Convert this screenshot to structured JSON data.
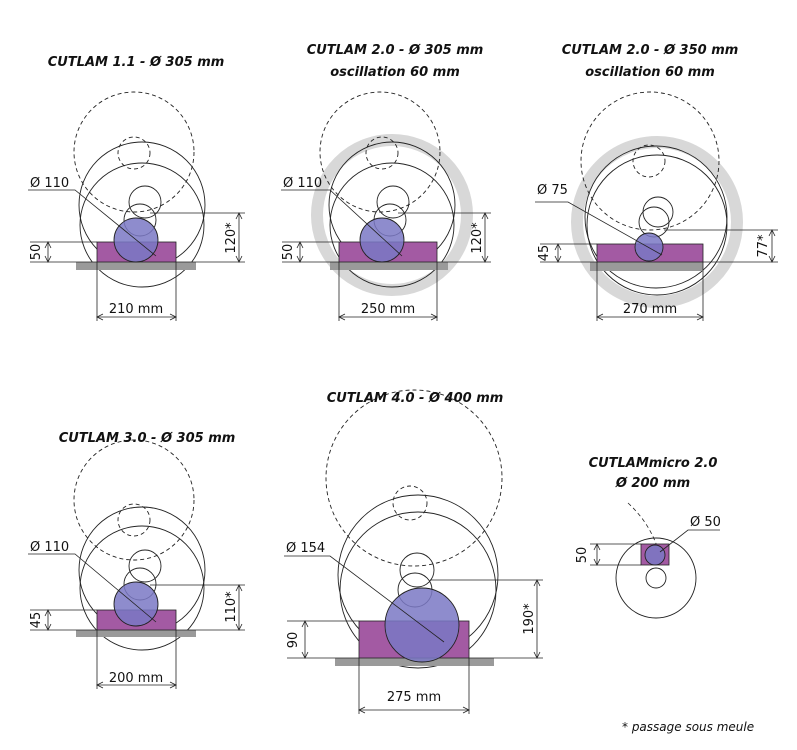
{
  "colors": {
    "workpiece": "#a35aa3",
    "wheel_disc": "#7a78c4",
    "base": "#9a9a9a",
    "halo": "#d8d8d8",
    "line": "#222222"
  },
  "panels": [
    {
      "title": [
        "CUTLAM 1.1 - Ø 305 mm"
      ],
      "diameter": "Ø 110",
      "height": "50",
      "clearance": "120*",
      "width": "210 mm"
    },
    {
      "title": [
        "CUTLAM 2.0 - Ø 305 mm",
        "oscillation 60 mm"
      ],
      "diameter": "Ø 110",
      "height": "50",
      "clearance": "120*",
      "width": "250 mm"
    },
    {
      "title": [
        "CUTLAM 2.0 - Ø 350 mm",
        "oscillation 60 mm"
      ],
      "diameter": "Ø 75",
      "height": "45",
      "clearance": "77*",
      "width": "270 mm"
    },
    {
      "title": [
        "CUTLAM 3.0 - Ø 305 mm"
      ],
      "diameter": "Ø 110",
      "height": "45",
      "clearance": "110*",
      "width": "200 mm"
    },
    {
      "title": [
        "CUTLAM 4.0 - Ø 400 mm"
      ],
      "diameter": "Ø 154",
      "height": "90",
      "clearance": "190*",
      "width": "275 mm"
    },
    {
      "title": [
        "CUTLAMmicro 2.0",
        "Ø 200 mm"
      ],
      "diameter": "Ø 50",
      "height": "50"
    }
  ],
  "footnote": "* passage sous meule"
}
